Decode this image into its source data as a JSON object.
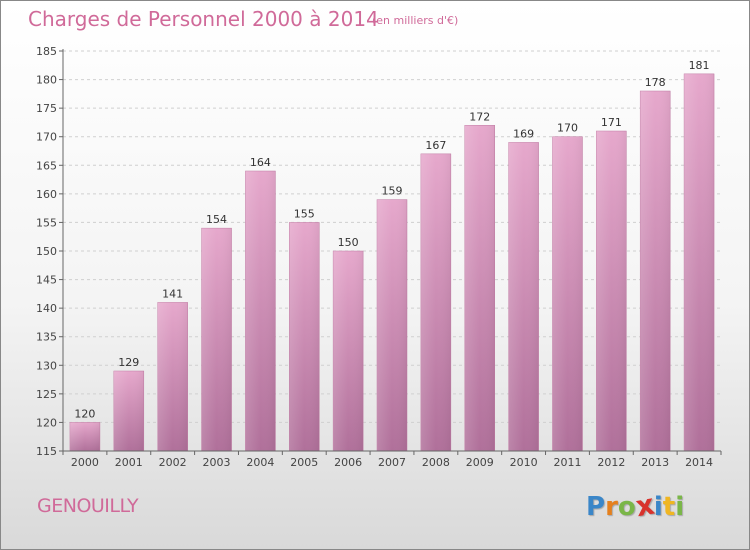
{
  "chart_data": {
    "type": "bar",
    "title": "Charges de Personnel 2000 à 2014",
    "subtitle": "(en milliers d'€)",
    "categories": [
      "2000",
      "2001",
      "2002",
      "2003",
      "2004",
      "2005",
      "2006",
      "2007",
      "2008",
      "2009",
      "2010",
      "2011",
      "2012",
      "2013",
      "2014"
    ],
    "values": [
      120,
      129,
      141,
      154,
      164,
      155,
      150,
      159,
      167,
      172,
      169,
      170,
      171,
      178,
      181
    ],
    "ylim": [
      115,
      185
    ],
    "yticks": [
      115,
      120,
      125,
      130,
      135,
      140,
      145,
      150,
      155,
      160,
      165,
      170,
      175,
      180,
      185
    ],
    "grid": true,
    "bar_color": "#d98bb6",
    "legend": "none"
  },
  "footer": {
    "commune": "GENOUILLY",
    "logo_letters": [
      {
        "char": "P",
        "color": "#3a86c8"
      },
      {
        "char": "r",
        "color": "#e5801e"
      },
      {
        "char": "o",
        "color": "#7ab648"
      },
      {
        "char": "x",
        "color": "#d8322c"
      },
      {
        "char": "i",
        "color": "#3a86c8"
      },
      {
        "char": "t",
        "color": "#f0b622"
      },
      {
        "char": "i",
        "color": "#7ab648"
      }
    ]
  }
}
